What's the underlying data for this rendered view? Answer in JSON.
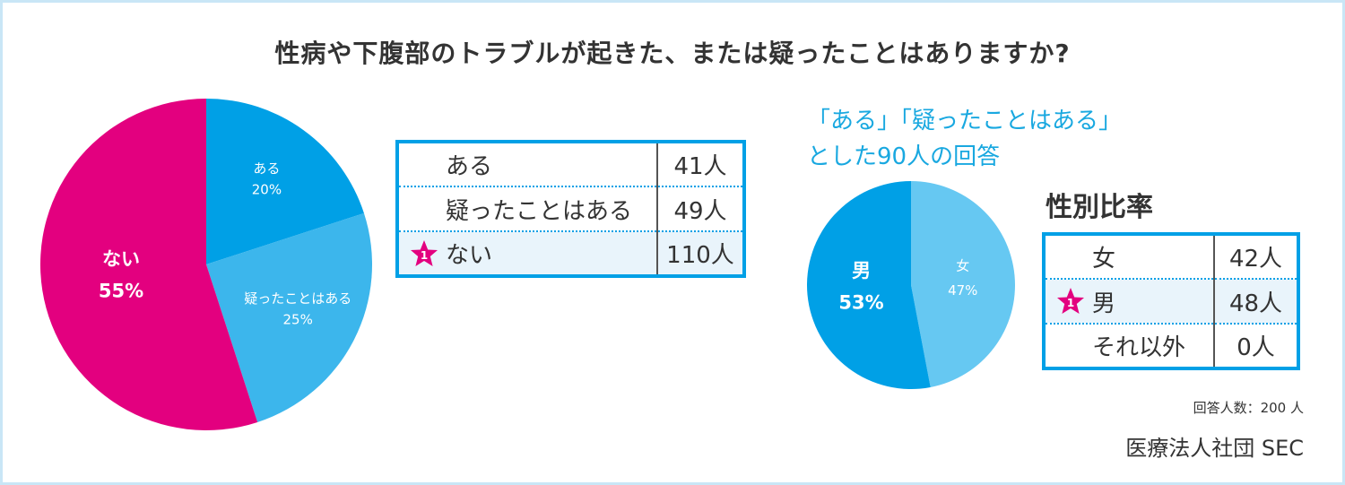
{
  "title": "性病や下腹部のトラブルが起きた、または疑ったことはありますか?",
  "main_chart": {
    "type": "pie",
    "slices": [
      {
        "label": "ある",
        "pct_label": "20%",
        "value": 20,
        "color": "#00a0e6"
      },
      {
        "label": "疑ったことはある",
        "pct_label": "25%",
        "value": 25,
        "color": "#3cb6ec"
      },
      {
        "label": "ない",
        "pct_label": "55%",
        "value": 55,
        "color": "#e3007f"
      }
    ]
  },
  "main_table": {
    "rows": [
      {
        "label": "ある",
        "count": "41人",
        "highlight": false
      },
      {
        "label": "疑ったことはある",
        "count": "49人",
        "highlight": false
      },
      {
        "label": "ない",
        "count": "110人",
        "highlight": true,
        "rank": "1"
      }
    ]
  },
  "subset_title_line1": "「ある」「疑ったことはある」",
  "subset_title_line2": "とした90人の回答",
  "gender_heading": "性別比率",
  "gender_chart": {
    "type": "pie",
    "slices": [
      {
        "label": "女",
        "pct_label": "47%",
        "value": 47,
        "color": "#66c8f2"
      },
      {
        "label": "男",
        "pct_label": "53%",
        "value": 53,
        "color": "#00a0e6"
      }
    ]
  },
  "gender_table": {
    "rows": [
      {
        "label": "女",
        "count": "42人",
        "highlight": false
      },
      {
        "label": "男",
        "count": "48人",
        "highlight": true,
        "rank": "1"
      },
      {
        "label": "それ以外",
        "count": "0人",
        "highlight": false
      }
    ]
  },
  "respondents": "回答人数：200 人",
  "source": "医療法人社団 SEC",
  "colors": {
    "accent": "#00a0e6",
    "pink": "#e3007f",
    "frame": "#c9e6f6"
  },
  "chart_data": [
    {
      "type": "pie",
      "title": "性病や下腹部のトラブルが起きた、または疑ったことはありますか?",
      "categories": [
        "ある",
        "疑ったことはある",
        "ない"
      ],
      "values": [
        20,
        25,
        55
      ],
      "counts": [
        41,
        49,
        110
      ]
    },
    {
      "type": "pie",
      "title": "性別比率",
      "categories": [
        "女",
        "男",
        "それ以外"
      ],
      "values": [
        47,
        53,
        0
      ],
      "counts": [
        42,
        48,
        0
      ]
    }
  ]
}
